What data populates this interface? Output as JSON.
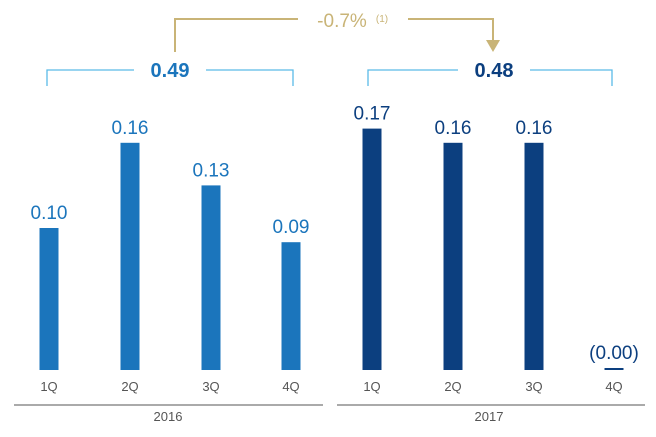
{
  "chart_data": {
    "type": "bar",
    "groups": [
      {
        "year": "2016",
        "total": "0.49",
        "categories": [
          "1Q",
          "2Q",
          "3Q",
          "4Q"
        ],
        "values": [
          0.1,
          0.16,
          0.13,
          0.09
        ],
        "labels": [
          "0.10",
          "0.16",
          "0.13",
          "0.09"
        ],
        "color": "#1b75bc"
      },
      {
        "year": "2017",
        "total": "0.48",
        "categories": [
          "1Q",
          "2Q",
          "3Q",
          "4Q"
        ],
        "values": [
          0.17,
          0.16,
          0.16,
          0.0
        ],
        "labels": [
          "0.17",
          "0.16",
          "0.16",
          "(0.00)"
        ],
        "color": "#0c3f7f"
      }
    ],
    "change": {
      "text": "-0.7%",
      "note": "(1)"
    },
    "colors": {
      "bracket": "#5bbbe8",
      "arrow": "#c9b477",
      "total_2016": "#1b75bc",
      "total_2017": "#0c3f7f",
      "label_2016": "#1b75bc",
      "label_2017": "#0c3f7f"
    }
  }
}
